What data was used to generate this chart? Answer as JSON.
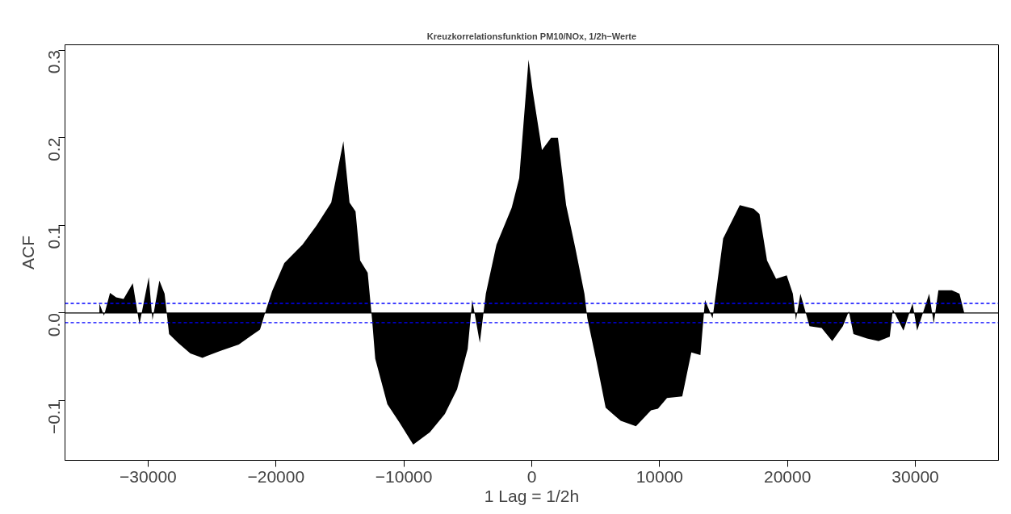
{
  "chart_data": {
    "type": "area",
    "title": "Kreuzkorrelationsfunktion PM10/NOx, 1/2h−Werte",
    "xlabel": "1 Lag = 1/2h",
    "ylabel": "ACF",
    "color": "#000000",
    "x": [
      -33810,
      -33450,
      -32980,
      -32500,
      -31920,
      -31200,
      -30680,
      -29950,
      -29660,
      -29120,
      -28710,
      -28360,
      -27650,
      -26700,
      -25750,
      -24330,
      -22910,
      -21960,
      -21250,
      -20770,
      -20300,
      -19350,
      -17930,
      -16820,
      -15680,
      -14730,
      -14250,
      -13780,
      -13420,
      -12830,
      -12470,
      -12240,
      -11290,
      -10340,
      -9270,
      -7970,
      -6790,
      -5840,
      -5010,
      -4650,
      -4060,
      -3590,
      -2760,
      -1570,
      -980,
      -250,
      90,
      800,
      1510,
      2050,
      2690,
      3410,
      4120,
      4350,
      5060,
      5780,
      6960,
      8150,
      9330,
      9870,
      10580,
      11770,
      12480,
      13190,
      13550,
      14140,
      14970,
      16270,
      17360,
      17810,
      18400,
      19110,
      19940,
      20420,
      20660,
      21010,
      21720,
      22670,
      23500,
      24330,
      24800,
      25160,
      26220,
      27130,
      28000,
      28240,
      29070,
      29780,
      30140,
      31080,
      31440,
      31800,
      32860,
      33450,
      33810
    ],
    "values": [
      0.011,
      -0.003,
      0.023,
      0.018,
      0.016,
      0.034,
      -0.013,
      0.041,
      -0.008,
      0.037,
      0.022,
      -0.024,
      -0.034,
      -0.046,
      -0.051,
      -0.043,
      -0.036,
      -0.026,
      -0.019,
      0.004,
      0.025,
      0.057,
      0.078,
      0.1,
      0.126,
      0.196,
      0.126,
      0.116,
      0.06,
      0.046,
      -0.01,
      -0.052,
      -0.104,
      -0.125,
      -0.15,
      -0.136,
      -0.115,
      -0.087,
      -0.041,
      0.015,
      -0.034,
      0.022,
      0.078,
      0.12,
      0.154,
      0.289,
      0.252,
      0.186,
      0.2,
      0.2,
      0.123,
      0.074,
      0.022,
      -0.006,
      -0.055,
      -0.108,
      -0.123,
      -0.129,
      -0.111,
      -0.109,
      -0.097,
      -0.095,
      -0.045,
      -0.048,
      0.015,
      -0.006,
      0.085,
      0.123,
      0.119,
      0.113,
      0.06,
      0.039,
      0.043,
      0.022,
      -0.008,
      0.022,
      -0.015,
      -0.017,
      -0.032,
      -0.015,
      0.002,
      -0.024,
      -0.029,
      -0.032,
      -0.027,
      0.004,
      -0.02,
      0.011,
      -0.02,
      0.022,
      -0.012,
      0.026,
      0.026,
      0.022,
      0.001
    ],
    "xlim": [
      -36500,
      36500
    ],
    "ylim": [
      -0.168,
      0.306
    ],
    "xticks": [
      {
        "value": -30000,
        "label": "−30000"
      },
      {
        "value": -20000,
        "label": "−20000"
      },
      {
        "value": -10000,
        "label": "−10000"
      },
      0,
      10000,
      20000,
      30000
    ],
    "yticks": [
      {
        "value": -0.1,
        "label": "−0.1"
      },
      {
        "value": 0,
        "label": "0.0"
      },
      0.1,
      0.2,
      0.3
    ],
    "ref_lines": [
      {
        "axis": "y",
        "value": 0,
        "color": "#000000",
        "line_style": "solid"
      },
      {
        "axis": "y",
        "value": 0.011,
        "color": "#0000ff",
        "line_style": "dashed"
      },
      {
        "axis": "y",
        "value": -0.011,
        "color": "#0000ff",
        "line_style": "dashed"
      }
    ]
  }
}
